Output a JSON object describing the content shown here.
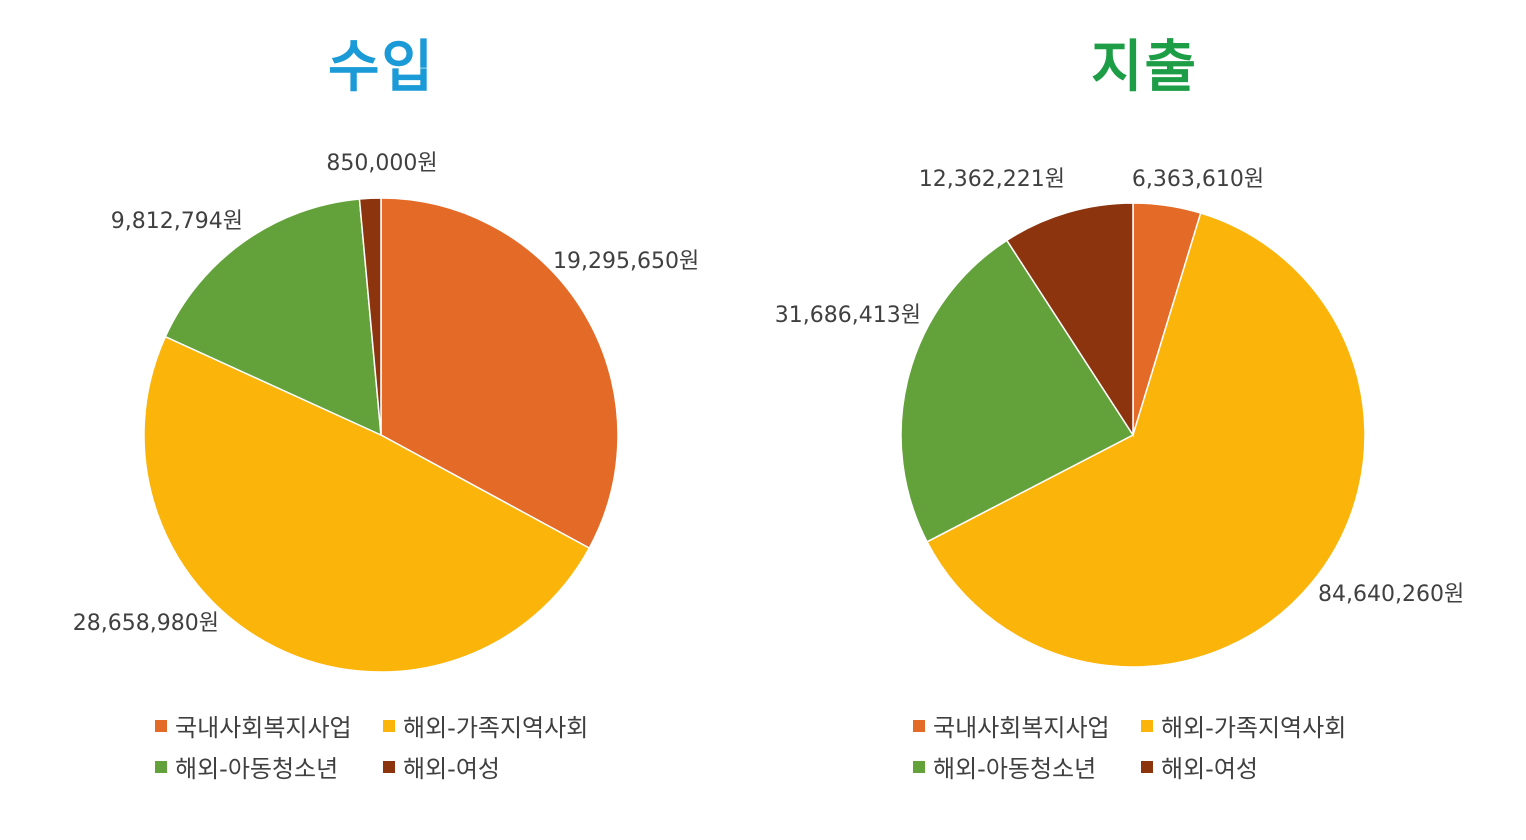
{
  "chart_data": [
    {
      "type": "pie",
      "title": "수입",
      "title_color": "#1a9ad6",
      "slices": [
        {
          "name": "국내사회복지사업",
          "value": 19295650,
          "label": "19,295,650원",
          "color": "#e46a28"
        },
        {
          "name": "해외-가족지역사회",
          "value": 28658980,
          "label": "28,658,980원",
          "color": "#fbb40a"
        },
        {
          "name": "해외-아동청소년",
          "value": 9812794,
          "label": "9,812,794원",
          "color": "#63a23a"
        },
        {
          "name": "해외-여성",
          "value": 850000,
          "label": "850,000원",
          "color": "#8b340e"
        }
      ],
      "legend": [
        "국내사회복지사업",
        "해외-가족지역사회",
        "해외-아동청소년",
        "해외-여성"
      ],
      "legend_position": "bottom"
    },
    {
      "type": "pie",
      "title": "지출",
      "title_color": "#1d9d46",
      "slices": [
        {
          "name": "국내사회복지사업",
          "value": 6363610,
          "label": "6,363,610원",
          "color": "#e46a28"
        },
        {
          "name": "해외-가족지역사회",
          "value": 84640260,
          "label": "84,640,260원",
          "color": "#fbb40a"
        },
        {
          "name": "해외-아동청소년",
          "value": 31686413,
          "label": "31,686,413원",
          "color": "#63a23a"
        },
        {
          "name": "해외-여성",
          "value": 12362221,
          "label": "12,362,221원",
          "color": "#8b340e"
        }
      ],
      "legend": [
        "국내사회복지사업",
        "해외-가족지역사회",
        "해외-아동청소년",
        "해외-여성"
      ],
      "legend_position": "bottom"
    }
  ]
}
